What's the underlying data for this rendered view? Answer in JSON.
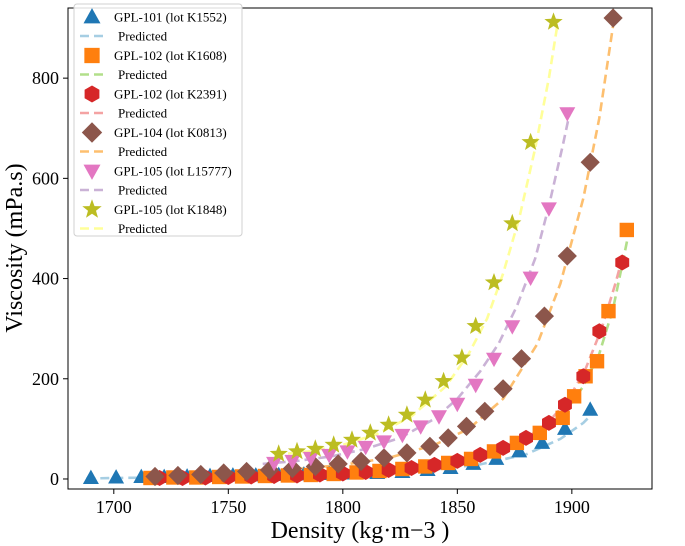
{
  "chart_data": {
    "type": "scatter",
    "title": "",
    "xlabel": "Density (kg·m−3 )",
    "ylabel": "Viscosity (mPa.s)",
    "xlim": [
      1680,
      1935
    ],
    "ylim": [
      -20,
      940
    ],
    "xticks": [
      1700,
      1750,
      1800,
      1850,
      1900
    ],
    "yticks": [
      0,
      200,
      400,
      600,
      800
    ],
    "legend_position": "top-left",
    "predicted_label": "Predicted",
    "series": [
      {
        "name": "GPL-101 (lot K1552)",
        "marker": "triangle-up",
        "color": "#1f77b4",
        "fit_color": "#a6cee3",
        "points": [
          [
            1690,
            2
          ],
          [
            1701,
            3
          ],
          [
            1712,
            4
          ],
          [
            1722,
            4
          ],
          [
            1732,
            5
          ],
          [
            1742,
            6
          ],
          [
            1752,
            7
          ],
          [
            1762,
            7
          ],
          [
            1772,
            8
          ],
          [
            1783,
            9
          ],
          [
            1794,
            10
          ],
          [
            1804,
            11
          ],
          [
            1815,
            12
          ],
          [
            1826,
            14
          ],
          [
            1837,
            18
          ],
          [
            1847,
            22
          ],
          [
            1857,
            30
          ],
          [
            1867,
            40
          ],
          [
            1877,
            55
          ],
          [
            1887,
            72
          ],
          [
            1897,
            100
          ],
          [
            1908,
            138
          ]
        ],
        "fit": [
          [
            1688,
            1
          ],
          [
            1700,
            2
          ],
          [
            1720,
            3
          ],
          [
            1740,
            5
          ],
          [
            1760,
            7
          ],
          [
            1780,
            9
          ],
          [
            1800,
            11
          ],
          [
            1820,
            14
          ],
          [
            1840,
            19
          ],
          [
            1860,
            29
          ],
          [
            1880,
            49
          ],
          [
            1895,
            80
          ],
          [
            1905,
            112
          ],
          [
            1910,
            135
          ]
        ]
      },
      {
        "name": "GPL-102 (lot K1608)",
        "marker": "square",
        "color": "#ff7f0e",
        "fit_color": "#b2df8a",
        "points": [
          [
            1716,
            2
          ],
          [
            1726,
            3
          ],
          [
            1736,
            3
          ],
          [
            1746,
            4
          ],
          [
            1756,
            5
          ],
          [
            1766,
            6
          ],
          [
            1776,
            7
          ],
          [
            1786,
            8
          ],
          [
            1796,
            10
          ],
          [
            1806,
            13
          ],
          [
            1816,
            16
          ],
          [
            1826,
            20
          ],
          [
            1836,
            25
          ],
          [
            1846,
            32
          ],
          [
            1856,
            40
          ],
          [
            1866,
            55
          ],
          [
            1876,
            72
          ],
          [
            1886,
            92
          ],
          [
            1896,
            122
          ],
          [
            1901,
            165
          ],
          [
            1906,
            205
          ],
          [
            1911,
            235
          ],
          [
            1916,
            335
          ],
          [
            1924,
            497
          ]
        ],
        "fit": [
          [
            1716,
            2
          ],
          [
            1740,
            3
          ],
          [
            1760,
            5
          ],
          [
            1780,
            7
          ],
          [
            1800,
            10
          ],
          [
            1820,
            17
          ],
          [
            1840,
            28
          ],
          [
            1860,
            47
          ],
          [
            1875,
            70
          ],
          [
            1888,
            100
          ],
          [
            1898,
            140
          ],
          [
            1905,
            185
          ],
          [
            1912,
            250
          ],
          [
            1918,
            340
          ],
          [
            1923,
            450
          ],
          [
            1925,
            495
          ]
        ]
      },
      {
        "name": "GPL-102 (lot K2391)",
        "marker": "hexagon",
        "color": "#d62728",
        "fit_color": "#f4a3a3",
        "points": [
          [
            1720,
            2
          ],
          [
            1730,
            2
          ],
          [
            1740,
            3
          ],
          [
            1750,
            4
          ],
          [
            1760,
            5
          ],
          [
            1770,
            6
          ],
          [
            1780,
            7
          ],
          [
            1790,
            9
          ],
          [
            1800,
            11
          ],
          [
            1810,
            14
          ],
          [
            1820,
            18
          ],
          [
            1830,
            22
          ],
          [
            1840,
            28
          ],
          [
            1850,
            36
          ],
          [
            1860,
            48
          ],
          [
            1870,
            62
          ],
          [
            1880,
            82
          ],
          [
            1890,
            112
          ],
          [
            1897,
            148
          ],
          [
            1905,
            205
          ],
          [
            1912,
            295
          ],
          [
            1922,
            432
          ]
        ],
        "fit": [
          [
            1720,
            2
          ],
          [
            1740,
            3
          ],
          [
            1760,
            5
          ],
          [
            1780,
            7
          ],
          [
            1800,
            10
          ],
          [
            1820,
            17
          ],
          [
            1840,
            27
          ],
          [
            1860,
            45
          ],
          [
            1875,
            68
          ],
          [
            1888,
            105
          ],
          [
            1898,
            155
          ],
          [
            1906,
            220
          ],
          [
            1913,
            300
          ],
          [
            1919,
            390
          ],
          [
            1922,
            440
          ]
        ]
      },
      {
        "name": "GPL-104 (lot K0813)",
        "marker": "diamond",
        "color": "#8c564b",
        "fit_color": "#fdbf6f",
        "points": [
          [
            1718,
            5
          ],
          [
            1728,
            7
          ],
          [
            1738,
            9
          ],
          [
            1748,
            12
          ],
          [
            1758,
            15
          ],
          [
            1768,
            18
          ],
          [
            1778,
            21
          ],
          [
            1788,
            25
          ],
          [
            1798,
            30
          ],
          [
            1808,
            35
          ],
          [
            1818,
            42
          ],
          [
            1828,
            52
          ],
          [
            1838,
            65
          ],
          [
            1846,
            82
          ],
          [
            1854,
            105
          ],
          [
            1862,
            135
          ],
          [
            1870,
            180
          ],
          [
            1878,
            240
          ],
          [
            1888,
            325
          ],
          [
            1898,
            445
          ],
          [
            1908,
            632
          ],
          [
            1918,
            920
          ]
        ],
        "fit": [
          [
            1718,
            5
          ],
          [
            1740,
            10
          ],
          [
            1760,
            14
          ],
          [
            1780,
            20
          ],
          [
            1800,
            28
          ],
          [
            1820,
            42
          ],
          [
            1840,
            68
          ],
          [
            1855,
            100
          ],
          [
            1870,
            160
          ],
          [
            1885,
            270
          ],
          [
            1895,
            390
          ],
          [
            1905,
            560
          ],
          [
            1912,
            720
          ],
          [
            1918,
            905
          ]
        ]
      },
      {
        "name": "GPL-105 (lot L15777)",
        "marker": "triangle-down",
        "color": "#e377c2",
        "fit_color": "#cab2d6",
        "points": [
          [
            1770,
            32
          ],
          [
            1778,
            36
          ],
          [
            1786,
            42
          ],
          [
            1794,
            48
          ],
          [
            1802,
            55
          ],
          [
            1810,
            64
          ],
          [
            1818,
            75
          ],
          [
            1826,
            88
          ],
          [
            1834,
            105
          ],
          [
            1842,
            125
          ],
          [
            1850,
            150
          ],
          [
            1858,
            188
          ],
          [
            1866,
            240
          ],
          [
            1874,
            305
          ],
          [
            1882,
            402
          ],
          [
            1890,
            540
          ],
          [
            1898,
            730
          ]
        ],
        "fit": [
          [
            1765,
            30
          ],
          [
            1780,
            36
          ],
          [
            1795,
            45
          ],
          [
            1810,
            60
          ],
          [
            1825,
            82
          ],
          [
            1840,
            120
          ],
          [
            1850,
            160
          ],
          [
            1860,
            215
          ],
          [
            1868,
            270
          ],
          [
            1876,
            345
          ],
          [
            1884,
            440
          ],
          [
            1890,
            545
          ],
          [
            1896,
            665
          ],
          [
            1900,
            750
          ]
        ]
      },
      {
        "name": "GPL-105 (lot K1848)",
        "marker": "star",
        "color": "#bcbd22",
        "fit_color": "#ffff99",
        "points": [
          [
            1772,
            50
          ],
          [
            1780,
            55
          ],
          [
            1788,
            60
          ],
          [
            1796,
            68
          ],
          [
            1804,
            78
          ],
          [
            1812,
            92
          ],
          [
            1820,
            108
          ],
          [
            1828,
            128
          ],
          [
            1836,
            158
          ],
          [
            1844,
            195
          ],
          [
            1852,
            242
          ],
          [
            1858,
            305
          ],
          [
            1866,
            392
          ],
          [
            1874,
            510
          ],
          [
            1882,
            672
          ],
          [
            1892,
            912
          ]
        ],
        "fit": [
          [
            1770,
            48
          ],
          [
            1785,
            55
          ],
          [
            1800,
            68
          ],
          [
            1815,
            90
          ],
          [
            1830,
            125
          ],
          [
            1845,
            185
          ],
          [
            1855,
            250
          ],
          [
            1863,
            320
          ],
          [
            1870,
            410
          ],
          [
            1877,
            520
          ],
          [
            1884,
            660
          ],
          [
            1890,
            800
          ],
          [
            1894,
            915
          ]
        ]
      }
    ]
  }
}
